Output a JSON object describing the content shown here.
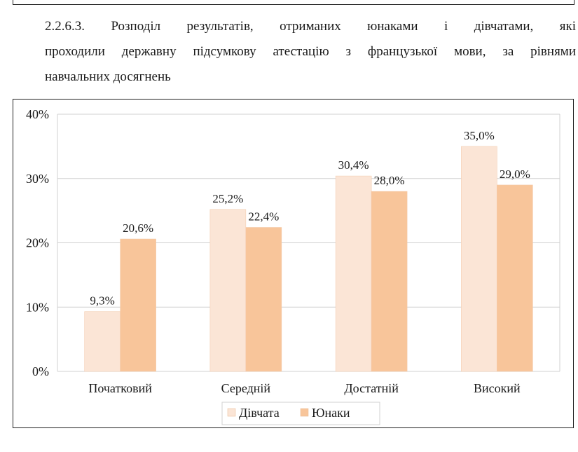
{
  "caption": {
    "number": "2.2.6.3.",
    "line1": "Розподіл результатів, отриманих юнаками і дівчатами, які",
    "line2": "проходили державну підсумкову атестацію з французької мови, за рівнями",
    "line3": "навчальних досягнень"
  },
  "chart_data": {
    "type": "bar",
    "title": "",
    "xlabel": "",
    "ylabel": "",
    "categories": [
      "Початковий",
      "Середній",
      "Достатній",
      "Високий"
    ],
    "series": [
      {
        "name": "Дівчата",
        "values": [
          9.3,
          25.2,
          30.4,
          35.0
        ],
        "labels": [
          "9,3%",
          "25,2%",
          "30,4%",
          "35,0%"
        ],
        "color": "#fbe5d6"
      },
      {
        "name": "Юнаки",
        "values": [
          20.6,
          22.4,
          28.0,
          29.0
        ],
        "labels": [
          "20,6%",
          "22,4%",
          "28,0%",
          "29,0%"
        ],
        "color": "#f8c59a"
      }
    ],
    "ylim": [
      0,
      40
    ],
    "yticks": [
      "0%",
      "10%",
      "20%",
      "30%",
      "40%"
    ],
    "grid": true,
    "legend": "bottom"
  }
}
